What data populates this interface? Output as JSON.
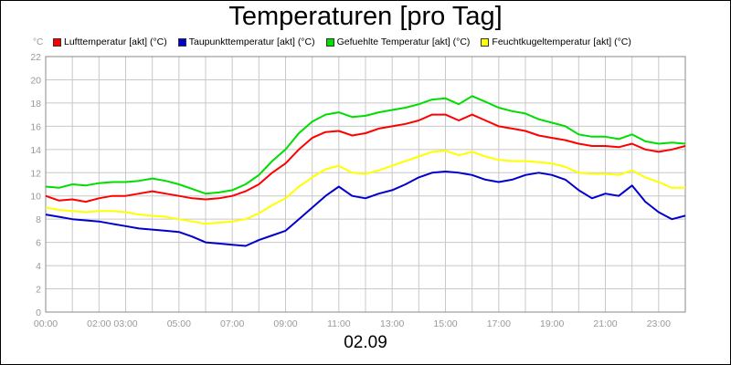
{
  "chart_data": {
    "type": "line",
    "title": "Temperaturen [pro Tag]",
    "y_unit": "°C",
    "xlabel": "02.09",
    "x_tick_labels": [
      "00:00",
      "02:00 03:00",
      "05:00",
      "07:00",
      "09:00",
      "11:00",
      "13:00",
      "15:00",
      "17:00",
      "19:00",
      "21:00",
      "23:00"
    ],
    "x_tick_hours": [
      0,
      2.5,
      5,
      7,
      9,
      11,
      13,
      15,
      17,
      19,
      21,
      23
    ],
    "xlim": [
      0,
      24
    ],
    "ylim": [
      0,
      22
    ],
    "y_ticks": [
      0,
      2,
      4,
      6,
      8,
      10,
      12,
      14,
      16,
      18,
      20,
      22
    ],
    "grid": true,
    "legend_position": "top",
    "series": [
      {
        "name": "Lufttemperatur [akt] (°C)",
        "color": "#ff0000",
        "x": [
          0,
          0.5,
          1,
          1.5,
          2,
          2.5,
          3,
          3.5,
          4,
          4.5,
          5,
          5.5,
          6,
          6.5,
          7,
          7.5,
          8,
          8.5,
          9,
          9.5,
          10,
          10.5,
          11,
          11.5,
          12,
          12.5,
          13,
          13.5,
          14,
          14.5,
          15,
          15.5,
          16,
          16.5,
          17,
          17.5,
          18,
          18.5,
          19,
          19.5,
          20,
          20.5,
          21,
          21.5,
          22,
          22.5,
          23,
          23.5,
          24
        ],
        "y": [
          10,
          9.6,
          9.7,
          9.5,
          9.8,
          10,
          10,
          10.2,
          10.4,
          10.2,
          10,
          9.8,
          9.7,
          9.8,
          10,
          10.4,
          11,
          12,
          12.8,
          14,
          15,
          15.5,
          15.6,
          15.2,
          15.4,
          15.8,
          16,
          16.2,
          16.5,
          17,
          17,
          16.5,
          17,
          16.5,
          16,
          15.8,
          15.6,
          15.2,
          15,
          14.8,
          14.5,
          14.3,
          14.3,
          14.2,
          14.5,
          14,
          13.8,
          14,
          14.3
        ]
      },
      {
        "name": "Taupunkttemperatur [akt] (°C)",
        "color": "#0000cc",
        "x": [
          0,
          0.5,
          1,
          1.5,
          2,
          2.5,
          3,
          3.5,
          4,
          4.5,
          5,
          5.5,
          6,
          6.5,
          7,
          7.5,
          8,
          8.5,
          9,
          9.5,
          10,
          10.5,
          11,
          11.5,
          12,
          12.5,
          13,
          13.5,
          14,
          14.5,
          15,
          15.5,
          16,
          16.5,
          17,
          17.5,
          18,
          18.5,
          19,
          19.5,
          20,
          20.5,
          21,
          21.5,
          22,
          22.5,
          23,
          23.5,
          24
        ],
        "y": [
          8.4,
          8.2,
          8,
          7.9,
          7.8,
          7.6,
          7.4,
          7.2,
          7.1,
          7,
          6.9,
          6.5,
          6,
          5.9,
          5.8,
          5.7,
          6.2,
          6.6,
          7,
          8,
          9,
          10,
          10.8,
          10,
          9.8,
          10.2,
          10.5,
          11,
          11.6,
          12,
          12.1,
          12,
          11.8,
          11.4,
          11.2,
          11.4,
          11.8,
          12,
          11.8,
          11.4,
          10.5,
          9.8,
          10.2,
          10,
          10.9,
          9.5,
          8.6,
          8,
          8.3
        ]
      },
      {
        "name": "Gefuehlte Temperatur [akt] (°C)",
        "color": "#00dd00",
        "x": [
          0,
          0.5,
          1,
          1.5,
          2,
          2.5,
          3,
          3.5,
          4,
          4.5,
          5,
          5.5,
          6,
          6.5,
          7,
          7.5,
          8,
          8.5,
          9,
          9.5,
          10,
          10.5,
          11,
          11.5,
          12,
          12.5,
          13,
          13.5,
          14,
          14.5,
          15,
          15.5,
          16,
          16.5,
          17,
          17.5,
          18,
          18.5,
          19,
          19.5,
          20,
          20.5,
          21,
          21.5,
          22,
          22.5,
          23,
          23.5,
          24
        ],
        "y": [
          10.8,
          10.7,
          11,
          10.9,
          11.1,
          11.2,
          11.2,
          11.3,
          11.5,
          11.3,
          11,
          10.6,
          10.2,
          10.3,
          10.5,
          11,
          11.8,
          13,
          14,
          15.4,
          16.4,
          17,
          17.2,
          16.8,
          16.9,
          17.2,
          17.4,
          17.6,
          17.9,
          18.3,
          18.4,
          17.9,
          18.6,
          18.1,
          17.6,
          17.3,
          17.1,
          16.6,
          16.3,
          16,
          15.3,
          15.1,
          15.1,
          14.9,
          15.3,
          14.7,
          14.5,
          14.6,
          14.5
        ]
      },
      {
        "name": "Feuchtkugeltemperatur [akt] (°C)",
        "color": "#ffff00",
        "x": [
          0,
          0.5,
          1,
          1.5,
          2,
          2.5,
          3,
          3.5,
          4,
          4.5,
          5,
          5.5,
          6,
          6.5,
          7,
          7.5,
          8,
          8.5,
          9,
          9.5,
          10,
          10.5,
          11,
          11.5,
          12,
          12.5,
          13,
          13.5,
          14,
          14.5,
          15,
          15.5,
          16,
          16.5,
          17,
          17.5,
          18,
          18.5,
          19,
          19.5,
          20,
          20.5,
          21,
          21.5,
          22,
          22.5,
          23,
          23.5,
          24
        ],
        "y": [
          9,
          8.8,
          8.7,
          8.6,
          8.7,
          8.7,
          8.6,
          8.4,
          8.3,
          8.2,
          8,
          7.8,
          7.6,
          7.7,
          7.8,
          8,
          8.5,
          9.2,
          9.8,
          10.8,
          11.6,
          12.3,
          12.6,
          12,
          11.9,
          12.2,
          12.6,
          13,
          13.4,
          13.8,
          13.9,
          13.5,
          13.8,
          13.4,
          13.1,
          13,
          13,
          12.9,
          12.8,
          12.5,
          12,
          11.9,
          11.9,
          11.8,
          12.2,
          11.6,
          11.2,
          10.7,
          10.7
        ]
      }
    ]
  }
}
